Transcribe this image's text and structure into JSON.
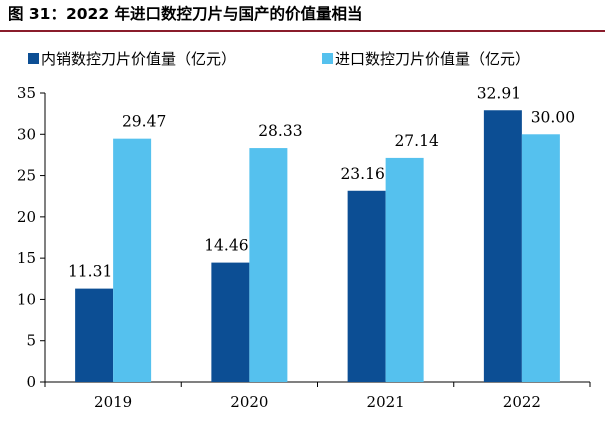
{
  "title": "图 31：2022 年进口数控刀片与国产的价值量相当",
  "chart_data": {
    "type": "bar",
    "title": "",
    "xlabel": "",
    "ylabel": "",
    "categories": [
      "2019",
      "2020",
      "2021",
      "2022"
    ],
    "series": [
      {
        "name": "内销数控刀片价值量（亿元）",
        "values": [
          11.31,
          14.46,
          23.16,
          32.91
        ],
        "color": "#0c4e94"
      },
      {
        "name": "进口数控刀片价值量（亿元）",
        "values": [
          29.47,
          28.33,
          27.14,
          30.0
        ],
        "color": "#55c1ee"
      }
    ],
    "data_labels": [
      [
        "11.31",
        "14.46",
        "23.16",
        "32.91"
      ],
      [
        "29.47",
        "28.33",
        "27.14",
        "30.00"
      ]
    ],
    "ylim": [
      0,
      35
    ],
    "yticks": [
      "0",
      "5",
      "10",
      "15",
      "20",
      "25",
      "30",
      "35"
    ],
    "grid": false,
    "legend": "top"
  }
}
